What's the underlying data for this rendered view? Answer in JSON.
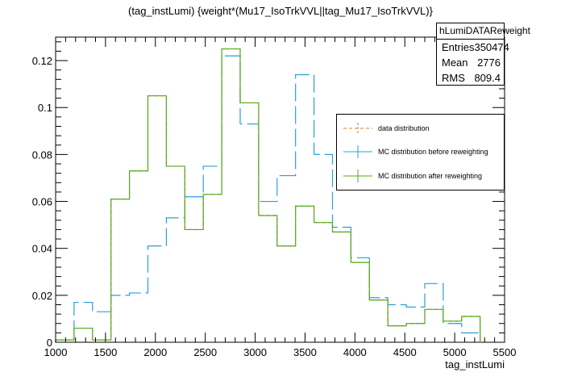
{
  "chart_data": {
    "type": "histogram",
    "title": "(tag_instLumi) {weight*(Mu17_IsoTrkVVL||tag_Mu17_IsoTrkVVL)}",
    "xlabel": "tag_instLumi",
    "ylabel": "",
    "xlim": [
      1000,
      5500
    ],
    "ylim": [
      0,
      0.13
    ],
    "x_ticks": [
      "1000",
      "1500",
      "2000",
      "2500",
      "3000",
      "3500",
      "4000",
      "4500",
      "5000",
      "5500"
    ],
    "y_ticks": [
      "0",
      "0.02",
      "0.04",
      "0.06",
      "0.08",
      "0.1",
      "0.12"
    ],
    "bin_edges": [
      1000,
      1185,
      1370,
      1555,
      1740,
      1925,
      2110,
      2295,
      2480,
      2665,
      2850,
      3035,
      3220,
      3405,
      3590,
      3775,
      3960,
      4145,
      4330,
      4515,
      4700,
      4885,
      5070,
      5255
    ],
    "series": [
      {
        "name": "data distribution",
        "color": "#d2852c",
        "values": [
          0.001,
          0.006,
          0.001,
          0.061,
          0.073,
          0.105,
          0.075,
          0.048,
          0.063,
          0.125,
          0.102,
          0.054,
          0.041,
          0.058,
          0.051,
          0.047,
          0.034,
          0.018,
          0.007,
          0.008,
          0.014,
          0.009,
          0.011,
          0.0
        ]
      },
      {
        "name": "MC distribution before reweighting",
        "color": "#2a9fd6",
        "values": [
          0.001,
          0.017,
          0.013,
          0.02,
          0.021,
          0.041,
          0.053,
          0.062,
          0.075,
          0.122,
          0.093,
          0.06,
          0.071,
          0.114,
          0.08,
          0.049,
          0.036,
          0.019,
          0.016,
          0.015,
          0.025,
          0.008,
          0.004,
          0.0
        ]
      },
      {
        "name": "MC distribution after reweighting",
        "color": "#55aa22",
        "values": [
          0.001,
          0.006,
          0.001,
          0.061,
          0.073,
          0.105,
          0.075,
          0.048,
          0.063,
          0.125,
          0.102,
          0.054,
          0.041,
          0.058,
          0.051,
          0.047,
          0.034,
          0.018,
          0.007,
          0.008,
          0.014,
          0.009,
          0.011,
          0.0
        ]
      }
    ],
    "legend_position": "right",
    "stats": {
      "name": "hLumiDATAReweight",
      "entries_label": "Entries",
      "entries": "350474",
      "mean_label": "Mean",
      "mean": "2776",
      "rms_label": "RMS",
      "rms": "809.4"
    }
  }
}
